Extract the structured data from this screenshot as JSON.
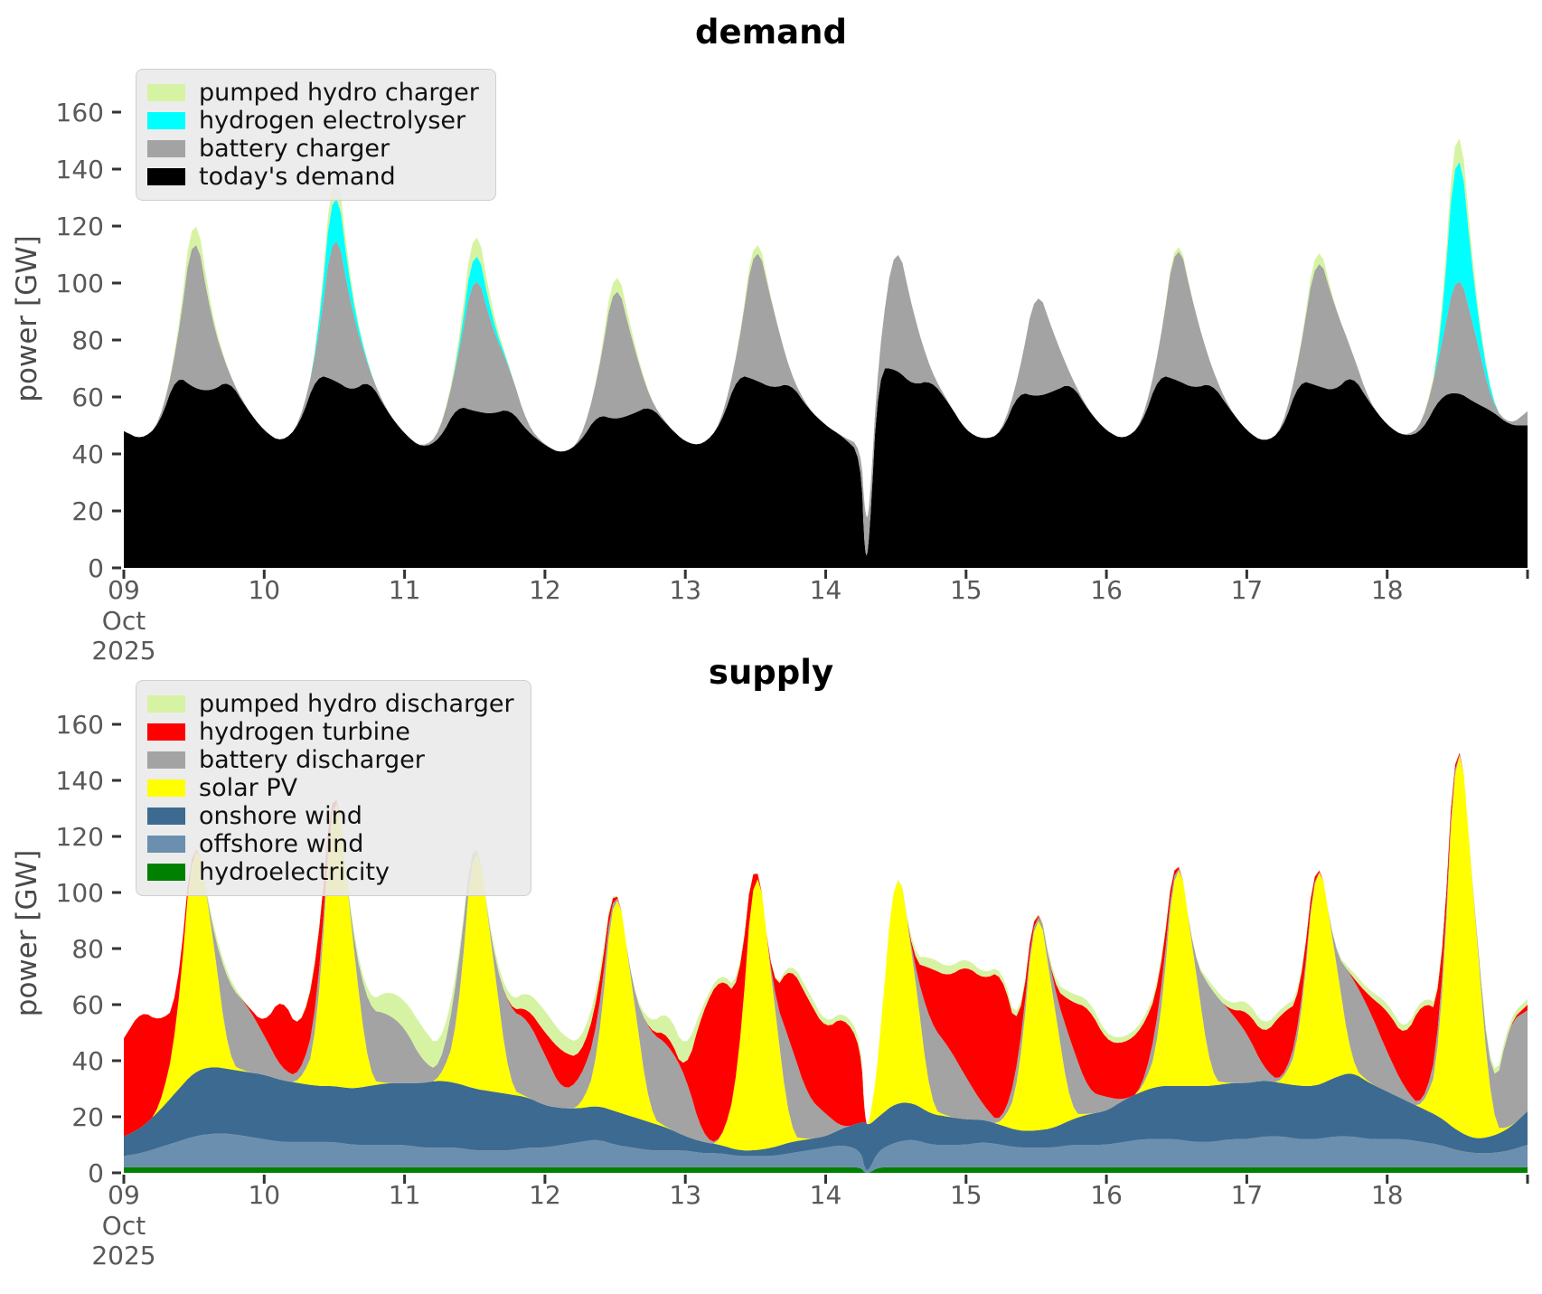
{
  "page": {
    "background": "#ffffff",
    "tick_color": "#333333",
    "label_color": "#595959"
  },
  "x_axis": {
    "tick_days": [
      9,
      10,
      11,
      12,
      13,
      14,
      15,
      16,
      17,
      18,
      19
    ],
    "tick_labels": [
      "09",
      "10",
      "11",
      "12",
      "13",
      "14",
      "15",
      "16",
      "17",
      "18",
      ""
    ],
    "first_tick_sublabels": [
      "Oct",
      "2025"
    ]
  },
  "y_axis": {
    "ticks": [
      0,
      20,
      40,
      60,
      80,
      100,
      120,
      140,
      160
    ],
    "label": "power [GW]",
    "units": "GW"
  },
  "chart_data": [
    {
      "type": "area",
      "stacked": true,
      "title": "demand",
      "ylabel": "power [GW]",
      "xlim": [
        9,
        19
      ],
      "ylim": [
        0,
        175
      ],
      "legend_order": [
        "pumped hydro charger",
        "hydrogen electrolyser",
        "battery charger",
        "today's demand"
      ],
      "x": [
        9,
        9.125,
        9.25,
        9.375,
        9.5,
        9.625,
        9.75,
        9.875,
        10,
        10.125,
        10.25,
        10.375,
        10.5,
        10.625,
        10.75,
        10.875,
        11,
        11.125,
        11.25,
        11.375,
        11.5,
        11.625,
        11.75,
        11.875,
        12,
        12.125,
        12.25,
        12.375,
        12.5,
        12.625,
        12.75,
        12.875,
        13,
        13.125,
        13.25,
        13.375,
        13.5,
        13.625,
        13.75,
        13.875,
        14,
        14.125,
        14.25,
        14.28,
        14.31,
        14.375,
        14.5,
        14.625,
        14.75,
        14.875,
        15,
        15.125,
        15.25,
        15.375,
        15.5,
        15.625,
        15.75,
        15.875,
        16,
        16.125,
        16.25,
        16.375,
        16.5,
        16.625,
        16.75,
        16.875,
        17,
        17.125,
        17.25,
        17.375,
        17.5,
        17.625,
        17.75,
        17.875,
        18,
        18.125,
        18.25,
        18.375,
        18.5,
        18.625,
        18.75,
        18.875,
        19
      ],
      "series": [
        {
          "name": "today's demand",
          "color": "#000000",
          "values": [
            48,
            45,
            50,
            68,
            63,
            62,
            66,
            56,
            48,
            44,
            50,
            68,
            66,
            62,
            66,
            55,
            47,
            42,
            45,
            57,
            55,
            54,
            56,
            48,
            43,
            40,
            44,
            54,
            52,
            54,
            57,
            50,
            44,
            43,
            50,
            68,
            66,
            63,
            65,
            56,
            50,
            46,
            40,
            2,
            8,
            70,
            70,
            64,
            66,
            58,
            48,
            45,
            47,
            62,
            60,
            62,
            65,
            55,
            48,
            45,
            50,
            68,
            66,
            63,
            65,
            56,
            48,
            44,
            48,
            66,
            64,
            62,
            68,
            58,
            50,
            46,
            48,
            60,
            62,
            58,
            55,
            50,
            50
          ]
        },
        {
          "name": "battery charger",
          "color": "#a3a3a3",
          "values": [
            0,
            0,
            0,
            8,
            60,
            25,
            2,
            0,
            0,
            0,
            0,
            8,
            58,
            28,
            3,
            0,
            0,
            0,
            2,
            15,
            52,
            30,
            14,
            2,
            0,
            0,
            0,
            12,
            52,
            25,
            2,
            0,
            0,
            0,
            0,
            8,
            52,
            28,
            3,
            0,
            0,
            0,
            3,
            16,
            10,
            5,
            48,
            25,
            3,
            0,
            0,
            0,
            0,
            5,
            40,
            20,
            2,
            0,
            0,
            0,
            0,
            8,
            53,
            28,
            5,
            0,
            0,
            0,
            0,
            8,
            49,
            30,
            8,
            0,
            0,
            0,
            2,
            15,
            45,
            25,
            2,
            0,
            5
          ]
        },
        {
          "name": "hydrogen electrolyser",
          "color": "#00ffff",
          "values": [
            0,
            0,
            0,
            0,
            0,
            0,
            0,
            0,
            0,
            0,
            0,
            0,
            19,
            4,
            0,
            0,
            0,
            0,
            0,
            0,
            11,
            3,
            0,
            0,
            0,
            0,
            0,
            0,
            0,
            0,
            0,
            0,
            0,
            0,
            0,
            0,
            0,
            0,
            0,
            0,
            0,
            0,
            0,
            0,
            0,
            0,
            0,
            0,
            0,
            0,
            0,
            0,
            0,
            0,
            0,
            0,
            0,
            0,
            0,
            0,
            0,
            0,
            0,
            0,
            0,
            0,
            0,
            0,
            0,
            0,
            0,
            0,
            0,
            0,
            0,
            0,
            0,
            0,
            53,
            12,
            0,
            0,
            0
          ]
        },
        {
          "name": "pumped hydro charger",
          "color": "#d6f3a3",
          "values": [
            0,
            0,
            0,
            1,
            8,
            2,
            0,
            0,
            0,
            0,
            0,
            0,
            8,
            2,
            0,
            0,
            0,
            0,
            0,
            2,
            8,
            3,
            0,
            0,
            0,
            0,
            0,
            0,
            6,
            2,
            0,
            0,
            0,
            0,
            0,
            0,
            4,
            0,
            0,
            0,
            0,
            0,
            0,
            0,
            0,
            0,
            0,
            0,
            0,
            0,
            0,
            0,
            0,
            0,
            0,
            0,
            0,
            0,
            0,
            0,
            0,
            0,
            2,
            0,
            0,
            0,
            0,
            0,
            0,
            0,
            5,
            0,
            0,
            0,
            0,
            0,
            0,
            2,
            10,
            3,
            0,
            0,
            0
          ]
        }
      ]
    },
    {
      "type": "area",
      "stacked": true,
      "title": "supply",
      "ylabel": "power [GW]",
      "xlim": [
        9,
        19
      ],
      "ylim": [
        0,
        171
      ],
      "legend_order": [
        "pumped hydro discharger",
        "hydrogen turbine",
        "battery discharger",
        "solar PV",
        "onshore wind",
        "offshore wind",
        "hydroelectricity"
      ],
      "x": [
        9,
        9.125,
        9.25,
        9.375,
        9.5,
        9.625,
        9.75,
        9.875,
        10,
        10.125,
        10.25,
        10.375,
        10.5,
        10.625,
        10.75,
        10.875,
        11,
        11.125,
        11.25,
        11.375,
        11.5,
        11.625,
        11.75,
        11.875,
        12,
        12.125,
        12.25,
        12.375,
        12.5,
        12.625,
        12.75,
        12.875,
        13,
        13.125,
        13.25,
        13.375,
        13.5,
        13.625,
        13.75,
        13.875,
        14,
        14.125,
        14.25,
        14.28,
        14.31,
        14.375,
        14.5,
        14.625,
        14.75,
        14.875,
        15,
        15.125,
        15.25,
        15.375,
        15.5,
        15.625,
        15.75,
        15.875,
        16,
        16.125,
        16.25,
        16.375,
        16.5,
        16.625,
        16.75,
        16.875,
        17,
        17.125,
        17.25,
        17.375,
        17.5,
        17.625,
        17.75,
        17.875,
        18,
        18.125,
        18.25,
        18.375,
        18.5,
        18.625,
        18.75,
        18.875,
        19
      ],
      "series": [
        {
          "name": "hydroelectricity",
          "color": "#008000",
          "values": [
            2,
            2,
            2,
            2,
            2,
            2,
            2,
            2,
            2,
            2,
            2,
            2,
            2,
            2,
            2,
            2,
            2,
            2,
            2,
            2,
            2,
            2,
            2,
            2,
            2,
            2,
            2,
            2,
            2,
            2,
            2,
            2,
            2,
            2,
            2,
            2,
            2,
            2,
            2,
            2,
            2,
            2,
            2,
            0,
            0,
            2,
            2,
            2,
            2,
            2,
            2,
            2,
            2,
            2,
            2,
            2,
            2,
            2,
            2,
            2,
            2,
            2,
            2,
            2,
            2,
            2,
            2,
            2,
            2,
            2,
            2,
            2,
            2,
            2,
            2,
            2,
            2,
            2,
            2,
            2,
            2,
            2,
            2
          ]
        },
        {
          "name": "offshore wind",
          "color": "#6b8fae",
          "values": [
            4,
            5,
            7,
            9,
            11,
            12,
            12,
            11,
            10,
            9,
            9,
            9,
            9,
            8,
            8,
            8,
            8,
            7,
            7,
            7,
            6,
            6,
            6,
            7,
            7,
            8,
            9,
            10,
            8,
            7,
            6,
            6,
            6,
            5,
            5,
            4,
            4,
            4,
            5,
            6,
            7,
            8,
            6,
            1,
            1,
            6,
            9,
            10,
            8,
            8,
            8,
            9,
            8,
            7,
            7,
            7,
            8,
            8,
            8,
            9,
            10,
            10,
            10,
            9,
            9,
            10,
            10,
            11,
            11,
            10,
            10,
            11,
            11,
            10,
            10,
            10,
            9,
            8,
            6,
            5,
            5,
            6,
            8
          ]
        },
        {
          "name": "onshore wind",
          "color": "#3d6a90",
          "values": [
            7,
            9,
            13,
            18,
            23,
            24,
            23,
            23,
            23,
            22,
            21,
            20,
            20,
            20,
            21,
            22,
            22,
            23,
            24,
            23,
            22,
            21,
            20,
            18,
            15,
            13,
            12,
            12,
            12,
            11,
            10,
            8,
            5,
            4,
            3,
            2,
            2,
            3,
            4,
            4,
            4,
            6,
            10,
            17,
            16,
            12,
            14,
            13,
            11,
            10,
            9,
            8,
            7,
            6,
            6,
            7,
            9,
            11,
            12,
            15,
            17,
            19,
            19,
            20,
            20,
            20,
            20,
            20,
            19,
            19,
            19,
            21,
            23,
            20,
            17,
            14,
            12,
            10,
            7,
            5,
            6,
            8,
            12
          ]
        },
        {
          "name": "solar PV",
          "color": "#ffff00",
          "values": [
            0,
            0,
            0,
            20,
            91,
            50,
            2,
            0,
            0,
            0,
            0,
            15,
            119,
            55,
            2,
            0,
            0,
            0,
            0,
            18,
            98,
            50,
            2,
            0,
            0,
            0,
            0,
            15,
            88,
            45,
            2,
            0,
            0,
            0,
            0,
            25,
            113,
            55,
            2,
            0,
            0,
            0,
            0,
            0,
            0,
            20,
            92,
            50,
            2,
            0,
            0,
            0,
            0,
            15,
            87,
            45,
            2,
            0,
            0,
            0,
            0,
            15,
            90,
            45,
            2,
            0,
            0,
            0,
            0,
            15,
            88,
            45,
            2,
            0,
            0,
            0,
            0,
            20,
            157,
            80,
            3,
            0,
            0
          ]
        },
        {
          "name": "battery discharger",
          "color": "#a3a3a3",
          "values": [
            0,
            0,
            0,
            0,
            0,
            0,
            28,
            24,
            14,
            4,
            2,
            10,
            0,
            0,
            25,
            25,
            20,
            8,
            3,
            18,
            0,
            0,
            28,
            28,
            18,
            6,
            10,
            12,
            0,
            0,
            30,
            30,
            22,
            2,
            0,
            0,
            0,
            0,
            33,
            15,
            8,
            0,
            0,
            0,
            0,
            0,
            0,
            0,
            30,
            25,
            15,
            5,
            0,
            8,
            0,
            5,
            25,
            8,
            5,
            0,
            0,
            10,
            0,
            0,
            32,
            26,
            18,
            4,
            0,
            5,
            0,
            0,
            32,
            26,
            14,
            4,
            0,
            8,
            0,
            0,
            10,
            38,
            36
          ]
        },
        {
          "name": "hydrogen turbine",
          "color": "#ff0000",
          "values": [
            35,
            42,
            32,
            10,
            0,
            0,
            0,
            0,
            4,
            26,
            16,
            18,
            0,
            0,
            0,
            0,
            0,
            0,
            0,
            0,
            0,
            0,
            0,
            4,
            8,
            14,
            8,
            10,
            0,
            0,
            0,
            4,
            0,
            45,
            60,
            30,
            0,
            0,
            28,
            35,
            30,
            40,
            28,
            0,
            0,
            0,
            0,
            0,
            20,
            25,
            40,
            45,
            55,
            10,
            0,
            0,
            15,
            30,
            20,
            20,
            22,
            10,
            0,
            0,
            0,
            0,
            8,
            12,
            25,
            10,
            0,
            0,
            0,
            5,
            15,
            18,
            38,
            10,
            0,
            0,
            0,
            0,
            2
          ]
        },
        {
          "name": "pumped hydro discharger",
          "color": "#d6f3a3",
          "values": [
            0,
            0,
            0,
            0,
            0,
            2,
            2,
            0,
            0,
            0,
            0,
            2,
            0,
            2,
            3,
            8,
            10,
            12,
            8,
            3,
            0,
            2,
            3,
            6,
            8,
            6,
            5,
            4,
            0,
            0,
            3,
            8,
            8,
            2,
            2,
            2,
            0,
            0,
            2,
            3,
            2,
            2,
            3,
            0,
            0,
            0,
            0,
            2,
            4,
            3,
            3,
            2,
            2,
            2,
            0,
            2,
            3,
            3,
            2,
            2,
            2,
            2,
            0,
            0,
            2,
            2,
            4,
            3,
            2,
            2,
            0,
            0,
            2,
            2,
            3,
            2,
            2,
            2,
            0,
            0,
            2,
            2,
            2
          ]
        }
      ]
    }
  ]
}
